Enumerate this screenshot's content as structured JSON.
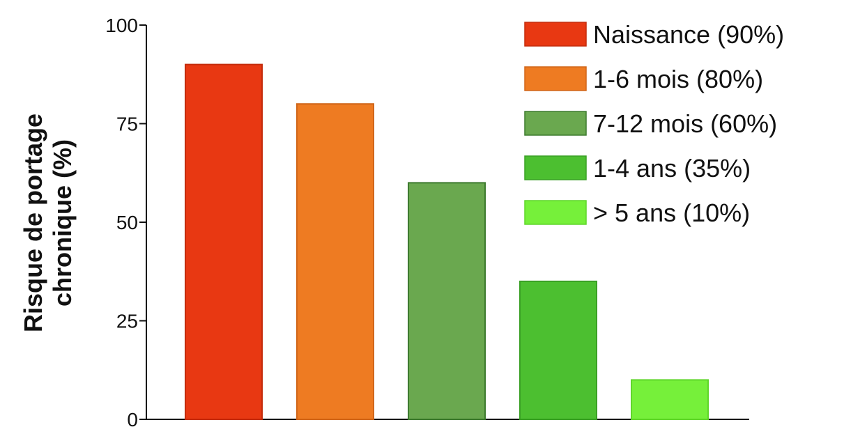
{
  "chart_data": {
    "type": "bar",
    "title": "",
    "xlabel": "",
    "ylabel_line1": "Risque de portage",
    "ylabel_line2": "chronique (%)",
    "ylim": [
      0,
      100
    ],
    "yticks": [
      "0",
      "25",
      "50",
      "75",
      "100"
    ],
    "ytick_values": [
      0,
      25,
      50,
      75,
      100
    ],
    "grid": false,
    "legend_position": "top-right",
    "categories": [
      "Naissance (90%)",
      "1-6 mois (80%)",
      "7-12 mois (60%)",
      "1-4 ans (35%)",
      "> 5 ans (10%)"
    ],
    "values": [
      90,
      80,
      60,
      35,
      10
    ],
    "colors": [
      "#e83812",
      "#ee7b22",
      "#6aa84f",
      "#4cbf30",
      "#76f03a"
    ],
    "stroke_colors": [
      "#c42c0c",
      "#d0661a",
      "#3d7a2e",
      "#3aa025",
      "#5fd62a"
    ]
  }
}
